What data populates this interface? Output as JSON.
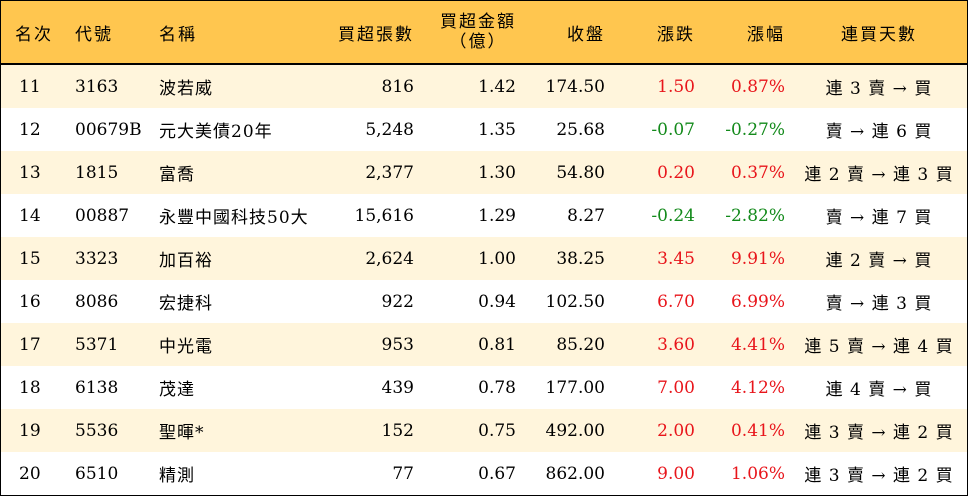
{
  "header": {
    "rank": "名次",
    "code": "代號",
    "name": "名稱",
    "volume": "買超張數",
    "amount_line1": "買超金額",
    "amount_line2": "（億）",
    "close": "收盤",
    "change": "漲跌",
    "change_pct": "漲幅",
    "days": "連買天數"
  },
  "colors": {
    "header_bg": "#ffc64f",
    "stripe_bg": "#fff5dc",
    "up": "#e8151b",
    "down": "#138a1b"
  },
  "rows": [
    {
      "rank": "11",
      "code": "3163",
      "name": "波若威",
      "volume": "816",
      "amount": "1.42",
      "close": "174.50",
      "change": "1.50",
      "change_pct": "0.87%",
      "dir": "up",
      "days": "連 3 賣 → 買"
    },
    {
      "rank": "12",
      "code": "00679B",
      "name": "元大美債20年",
      "volume": "5,248",
      "amount": "1.35",
      "close": "25.68",
      "change": "-0.07",
      "change_pct": "-0.27%",
      "dir": "down",
      "days": "賣 → 連 6 買"
    },
    {
      "rank": "13",
      "code": "1815",
      "name": "富喬",
      "volume": "2,377",
      "amount": "1.30",
      "close": "54.80",
      "change": "0.20",
      "change_pct": "0.37%",
      "dir": "up",
      "days": "連 2 賣 → 連 3 買"
    },
    {
      "rank": "14",
      "code": "00887",
      "name": "永豐中國科技50大",
      "volume": "15,616",
      "amount": "1.29",
      "close": "8.27",
      "change": "-0.24",
      "change_pct": "-2.82%",
      "dir": "down",
      "days": "賣 → 連 7 買"
    },
    {
      "rank": "15",
      "code": "3323",
      "name": "加百裕",
      "volume": "2,624",
      "amount": "1.00",
      "close": "38.25",
      "change": "3.45",
      "change_pct": "9.91%",
      "dir": "up",
      "days": "連 2 賣 → 買"
    },
    {
      "rank": "16",
      "code": "8086",
      "name": "宏捷科",
      "volume": "922",
      "amount": "0.94",
      "close": "102.50",
      "change": "6.70",
      "change_pct": "6.99%",
      "dir": "up",
      "days": "賣 → 連 3 買"
    },
    {
      "rank": "17",
      "code": "5371",
      "name": "中光電",
      "volume": "953",
      "amount": "0.81",
      "close": "85.20",
      "change": "3.60",
      "change_pct": "4.41%",
      "dir": "up",
      "days": "連 5 賣 → 連 4 買"
    },
    {
      "rank": "18",
      "code": "6138",
      "name": "茂達",
      "volume": "439",
      "amount": "0.78",
      "close": "177.00",
      "change": "7.00",
      "change_pct": "4.12%",
      "dir": "up",
      "days": "連 4 賣 → 買"
    },
    {
      "rank": "19",
      "code": "5536",
      "name": "聖暉*",
      "volume": "152",
      "amount": "0.75",
      "close": "492.00",
      "change": "2.00",
      "change_pct": "0.41%",
      "dir": "up",
      "days": "連 3 賣 → 連 2 買"
    },
    {
      "rank": "20",
      "code": "6510",
      "name": "精測",
      "volume": "77",
      "amount": "0.67",
      "close": "862.00",
      "change": "9.00",
      "change_pct": "1.06%",
      "dir": "up",
      "days": "連 3 賣 → 連 2 買"
    }
  ]
}
